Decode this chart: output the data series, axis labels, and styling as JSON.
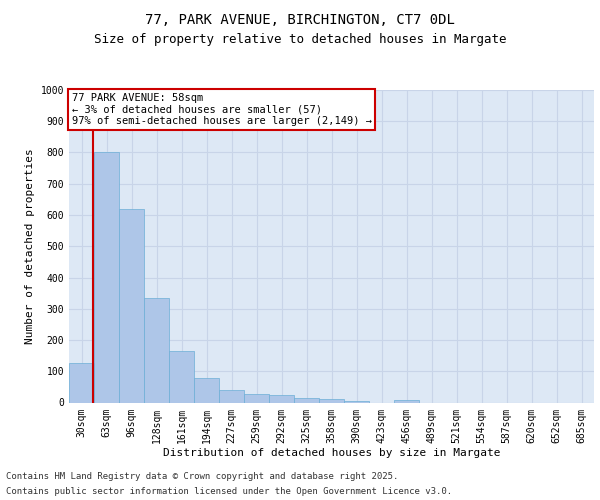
{
  "title_line1": "77, PARK AVENUE, BIRCHINGTON, CT7 0DL",
  "title_line2": "Size of property relative to detached houses in Margate",
  "xlabel": "Distribution of detached houses by size in Margate",
  "ylabel": "Number of detached properties",
  "categories": [
    "30sqm",
    "63sqm",
    "96sqm",
    "128sqm",
    "161sqm",
    "194sqm",
    "227sqm",
    "259sqm",
    "292sqm",
    "325sqm",
    "358sqm",
    "390sqm",
    "423sqm",
    "456sqm",
    "489sqm",
    "521sqm",
    "554sqm",
    "587sqm",
    "620sqm",
    "652sqm",
    "685sqm"
  ],
  "values": [
    125,
    800,
    620,
    335,
    165,
    80,
    40,
    27,
    25,
    15,
    12,
    5,
    0,
    8,
    0,
    0,
    0,
    0,
    0,
    0,
    0
  ],
  "bar_color": "#aec6e8",
  "bar_edge_color": "#6baed6",
  "highlight_color": "#cc0000",
  "annotation_text": "77 PARK AVENUE: 58sqm\n← 3% of detached houses are smaller (57)\n97% of semi-detached houses are larger (2,149) →",
  "ylim": [
    0,
    1000
  ],
  "yticks": [
    0,
    100,
    200,
    300,
    400,
    500,
    600,
    700,
    800,
    900,
    1000
  ],
  "grid_color": "#c8d4e8",
  "background_color": "#dde8f5",
  "footer_line1": "Contains HM Land Registry data © Crown copyright and database right 2025.",
  "footer_line2": "Contains public sector information licensed under the Open Government Licence v3.0.",
  "title_fontsize": 10,
  "subtitle_fontsize": 9,
  "axis_label_fontsize": 8,
  "tick_fontsize": 7,
  "annotation_fontsize": 7.5,
  "footer_fontsize": 6.5
}
